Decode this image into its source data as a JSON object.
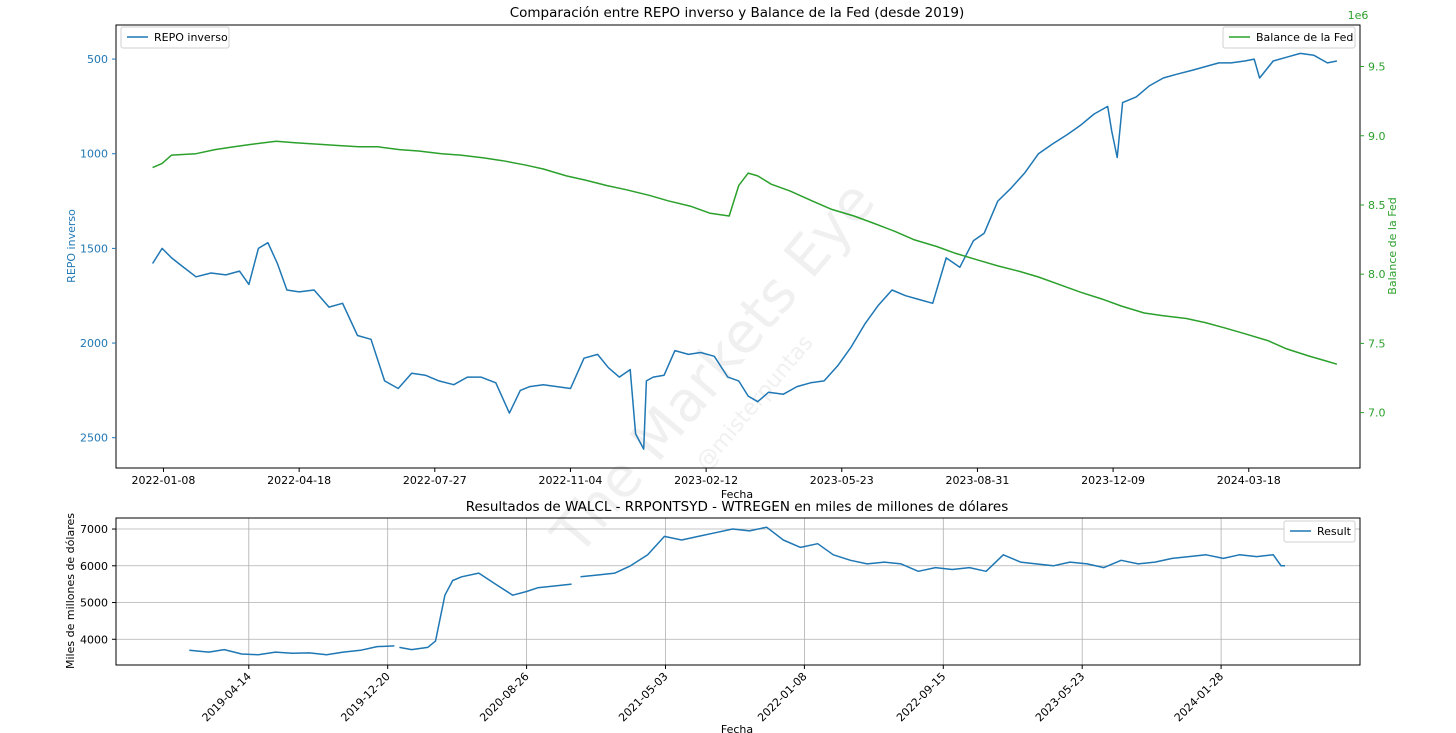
{
  "chart_data": [
    {
      "type": "line",
      "title": "Comparación entre REPO inverso y Balance de la Fed (desde 2019)",
      "xlabel": "Fecha",
      "xticks": [
        "2022-01-08",
        "2022-04-18",
        "2022-07-27",
        "2022-11-04",
        "2023-02-12",
        "2023-05-23",
        "2023-08-31",
        "2023-12-09",
        "2024-03-18"
      ],
      "xlim": [
        "2021-12-04",
        "2024-06-08"
      ],
      "y_left": {
        "label": "REPO inverso",
        "color": "#1f77b4",
        "inverted": true,
        "lim": [
          2660,
          320
        ],
        "ticks": [
          500,
          1000,
          1500,
          2000,
          2500
        ]
      },
      "y_right": {
        "label": "Balance de la Fed",
        "color": "#2ca02c",
        "lim": [
          6.6,
          9.8
        ],
        "ticks": [
          "7.0",
          "7.5",
          "8.0",
          "8.5",
          "9.0",
          "9.5"
        ],
        "offset_label": "1e6"
      },
      "legend_left": "upper-left",
      "legend_right": "upper-right",
      "grid": false,
      "series": [
        {
          "name": "REPO inverso",
          "axis": "left",
          "color": "#1f77b4",
          "x": [
            "2021-12-31",
            "2022-01-07",
            "2022-01-14",
            "2022-01-21",
            "2022-02-01",
            "2022-02-12",
            "2022-02-23",
            "2022-03-05",
            "2022-03-12",
            "2022-03-19",
            "2022-03-26",
            "2022-04-02",
            "2022-04-09",
            "2022-04-18",
            "2022-04-29",
            "2022-05-10",
            "2022-05-20",
            "2022-05-31",
            "2022-06-10",
            "2022-06-20",
            "2022-06-30",
            "2022-07-10",
            "2022-07-20",
            "2022-07-30",
            "2022-08-10",
            "2022-08-20",
            "2022-08-30",
            "2022-09-10",
            "2022-09-20",
            "2022-09-28",
            "2022-10-05",
            "2022-10-15",
            "2022-10-25",
            "2022-11-04",
            "2022-11-14",
            "2022-11-24",
            "2022-12-02",
            "2022-12-10",
            "2022-12-18",
            "2022-12-22",
            "2022-12-28",
            "2022-12-30",
            "2023-01-04",
            "2023-01-12",
            "2023-01-20",
            "2023-01-30",
            "2023-02-08",
            "2023-02-18",
            "2023-02-28",
            "2023-03-08",
            "2023-03-15",
            "2023-03-22",
            "2023-03-30",
            "2023-04-10",
            "2023-04-20",
            "2023-04-30",
            "2023-05-10",
            "2023-05-20",
            "2023-05-30",
            "2023-06-09",
            "2023-06-19",
            "2023-06-29",
            "2023-07-09",
            "2023-07-19",
            "2023-07-29",
            "2023-08-08",
            "2023-08-18",
            "2023-08-28",
            "2023-09-05",
            "2023-09-15",
            "2023-09-25",
            "2023-10-05",
            "2023-10-15",
            "2023-10-25",
            "2023-11-05",
            "2023-11-15",
            "2023-11-25",
            "2023-12-05",
            "2023-12-08",
            "2023-12-12",
            "2023-12-16",
            "2023-12-26",
            "2024-01-05",
            "2024-01-15",
            "2024-01-25",
            "2024-02-05",
            "2024-02-15",
            "2024-02-25",
            "2024-03-05",
            "2024-03-15",
            "2024-03-22",
            "2024-03-26",
            "2024-04-05",
            "2024-04-15",
            "2024-04-25",
            "2024-05-05",
            "2024-05-15",
            "2024-05-22"
          ],
          "values": [
            1580,
            1500,
            1550,
            1590,
            1650,
            1630,
            1640,
            1620,
            1690,
            1500,
            1470,
            1580,
            1720,
            1730,
            1720,
            1810,
            1790,
            1960,
            1980,
            2200,
            2240,
            2160,
            2170,
            2200,
            2220,
            2180,
            2180,
            2210,
            2370,
            2250,
            2230,
            2220,
            2230,
            2240,
            2080,
            2060,
            2130,
            2180,
            2140,
            2480,
            2560,
            2200,
            2180,
            2170,
            2040,
            2060,
            2050,
            2070,
            2180,
            2200,
            2280,
            2310,
            2260,
            2270,
            2230,
            2210,
            2200,
            2120,
            2020,
            1900,
            1800,
            1720,
            1750,
            1770,
            1790,
            1550,
            1600,
            1460,
            1420,
            1250,
            1180,
            1100,
            1000,
            950,
            900,
            850,
            790,
            750,
            880,
            1020,
            730,
            700,
            640,
            600,
            580,
            560,
            540,
            520,
            520,
            510,
            500,
            600,
            510,
            490,
            470,
            480,
            520,
            510
          ]
        },
        {
          "name": "Balance de la Fed",
          "axis": "right",
          "color": "#2ca02c",
          "x": [
            "2021-12-31",
            "2022-01-07",
            "2022-01-14",
            "2022-02-01",
            "2022-02-15",
            "2022-03-01",
            "2022-03-15",
            "2022-04-01",
            "2022-04-15",
            "2022-05-01",
            "2022-05-15",
            "2022-06-01",
            "2022-06-15",
            "2022-07-01",
            "2022-07-15",
            "2022-08-01",
            "2022-08-15",
            "2022-09-01",
            "2022-09-15",
            "2022-10-01",
            "2022-10-15",
            "2022-11-01",
            "2022-11-15",
            "2022-12-01",
            "2022-12-15",
            "2023-01-01",
            "2023-01-15",
            "2023-02-01",
            "2023-02-15",
            "2023-03-01",
            "2023-03-08",
            "2023-03-15",
            "2023-03-22",
            "2023-04-01",
            "2023-04-15",
            "2023-05-01",
            "2023-05-15",
            "2023-06-01",
            "2023-06-15",
            "2023-07-01",
            "2023-07-15",
            "2023-08-01",
            "2023-08-15",
            "2023-09-01",
            "2023-09-15",
            "2023-10-01",
            "2023-10-15",
            "2023-11-01",
            "2023-11-15",
            "2023-12-01",
            "2023-12-15",
            "2024-01-01",
            "2024-01-15",
            "2024-02-01",
            "2024-02-15",
            "2024-03-01",
            "2024-03-15",
            "2024-04-01",
            "2024-04-15",
            "2024-05-01",
            "2024-05-15",
            "2024-05-22"
          ],
          "values": [
            8.77,
            8.8,
            8.86,
            8.87,
            8.9,
            8.92,
            8.94,
            8.96,
            8.95,
            8.94,
            8.93,
            8.92,
            8.92,
            8.9,
            8.89,
            8.87,
            8.86,
            8.84,
            8.82,
            8.79,
            8.76,
            8.71,
            8.68,
            8.64,
            8.61,
            8.57,
            8.53,
            8.49,
            8.44,
            8.42,
            8.64,
            8.73,
            8.71,
            8.65,
            8.6,
            8.53,
            8.47,
            8.42,
            8.37,
            8.31,
            8.25,
            8.2,
            8.15,
            8.1,
            8.06,
            8.02,
            7.98,
            7.92,
            7.87,
            7.82,
            7.77,
            7.72,
            7.7,
            7.68,
            7.65,
            7.61,
            7.57,
            7.52,
            7.46,
            7.41,
            7.37,
            7.35
          ]
        }
      ]
    },
    {
      "type": "line",
      "title": "Resultados de WALCL - RRPONTSYD - WTREGEN en miles de millones de dólares",
      "xlabel": "Fecha",
      "ylabel": "Miles de millones de dólares",
      "xticks": [
        "2019-04-14",
        "2019-12-20",
        "2020-08-26",
        "2021-05-03",
        "2022-01-08",
        "2022-09-15",
        "2023-05-23",
        "2024-01-28"
      ],
      "xlim": [
        "2018-08-18",
        "2024-10-04"
      ],
      "ylim": [
        3300,
        7300
      ],
      "yticks": [
        4000,
        5000,
        6000,
        7000
      ],
      "grid": true,
      "legend": "upper-right",
      "series": [
        {
          "name": "Result",
          "color": "#1f77b4",
          "x": [
            "2018-12-28",
            "2019-02-01",
            "2019-03-01",
            "2019-04-01",
            "2019-05-01",
            "2019-06-01",
            "2019-07-01",
            "2019-08-01",
            "2019-09-01",
            "2019-10-01",
            "2019-11-01",
            "2019-12-01",
            "2020-01-01",
            null,
            "2020-01-10",
            "2020-02-01",
            "2020-03-01",
            "2020-03-15",
            "2020-04-01",
            "2020-04-15",
            "2020-05-01",
            "2020-06-01",
            "2020-07-01",
            "2020-08-01",
            "2020-08-26",
            "2020-09-15",
            "2020-10-15",
            "2020-11-15",
            null,
            "2020-12-01",
            "2021-01-01",
            "2021-02-01",
            "2021-03-01",
            "2021-04-01",
            "2021-05-01",
            "2021-06-01",
            "2021-07-01",
            "2021-08-01",
            "2021-09-01",
            "2021-10-01",
            "2021-11-01",
            "2021-12-01",
            "2022-01-01",
            "2022-02-01",
            "2022-03-01",
            "2022-04-01",
            "2022-05-01",
            "2022-06-01",
            "2022-07-01",
            "2022-08-01",
            "2022-09-01",
            "2022-10-01",
            "2022-11-01",
            "2022-12-01",
            "2023-01-01",
            "2023-02-01",
            "2023-03-01",
            "2023-04-01",
            "2023-05-01",
            "2023-06-01",
            "2023-07-01",
            "2023-08-01",
            "2023-09-01",
            "2023-10-01",
            "2023-11-01",
            "2023-12-01",
            "2024-01-01",
            "2024-02-01",
            "2024-03-01",
            "2024-04-01",
            "2024-05-01",
            "2024-05-15",
            "2024-05-22"
          ],
          "values": [
            3700,
            3650,
            3720,
            3600,
            3580,
            3650,
            3620,
            3630,
            3580,
            3650,
            3700,
            3800,
            3820,
            null,
            3780,
            3720,
            3780,
            3950,
            5200,
            5600,
            5700,
            5800,
            5500,
            5200,
            5300,
            5400,
            5450,
            5500,
            null,
            5700,
            5750,
            5800,
            6000,
            6300,
            6800,
            6700,
            6800,
            6900,
            7000,
            6950,
            7050,
            6700,
            6500,
            6600,
            6300,
            6150,
            6050,
            6100,
            6050,
            5850,
            5950,
            5900,
            5950,
            5850,
            6300,
            6100,
            6050,
            6000,
            6100,
            6050,
            5950,
            6150,
            6050,
            6100,
            6200,
            6250,
            6300,
            6200,
            6300,
            6250,
            6300,
            6000,
            6000
          ]
        }
      ]
    }
  ],
  "watermark": {
    "main": "The Markets Eye",
    "sub": "@misterpuntas"
  }
}
